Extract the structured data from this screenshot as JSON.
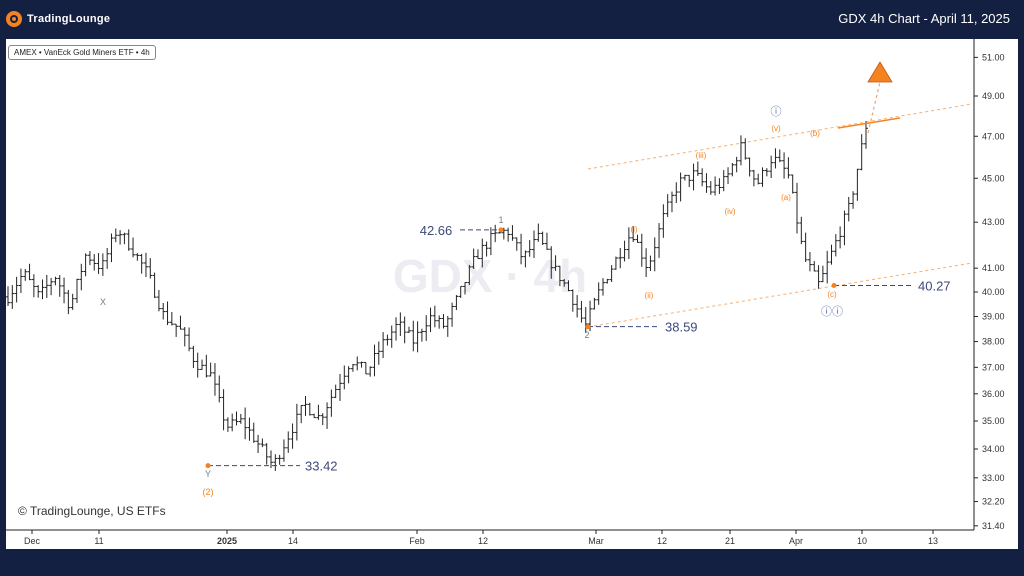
{
  "header": {
    "logo_text": "TradingLounge",
    "chart_title": "GDX 4h Chart - April 11, 2025"
  },
  "symbol_label": "AMEX • VanEck Gold Miners ETF • 4h",
  "watermark": "GDX · 4h",
  "credit": "© TradingLounge, US ETFs",
  "colors": {
    "background_frame": "#132042",
    "accent_orange": "#f58220",
    "bar_color": "#222222",
    "level_line": "#3d4a7a",
    "wave_label_gray": "#7a7a7a",
    "wave_label_blue": "#5a6fa8"
  },
  "chart_data": {
    "type": "ohlc",
    "y_scale": "log",
    "ylim": [
      31.0,
      52.0
    ],
    "x_tick_labels": [
      "Dec",
      "11",
      "2025",
      "14",
      "Feb",
      "12",
      "Mar",
      "12",
      "21",
      "Apr",
      "10",
      "13"
    ],
    "y_tick_labels": [
      "31.40",
      "32.20",
      "33.00",
      "34.00",
      "35.00",
      "36.00",
      "37.00",
      "38.00",
      "39.00",
      "40.00",
      "41.00",
      "43.00",
      "45.00",
      "47.00",
      "49.00",
      "51.00"
    ],
    "price_levels": [
      {
        "label": "42.66",
        "value": 42.66
      },
      {
        "label": "38.59",
        "value": 38.59
      },
      {
        "label": "33.42",
        "value": 33.42
      },
      {
        "label": "40.27",
        "value": 40.27
      }
    ],
    "wave_labels": [
      "X",
      "Y",
      "(2)",
      "1",
      "2",
      "(i)",
      "(ii)",
      "(iii)",
      "(iv)",
      "(v)",
      "(a)",
      "(b)",
      "(c)",
      "ⓘ",
      "ⓘⓘ"
    ],
    "price_path": [
      39.8,
      40.8,
      39.8,
      40.7,
      39.4,
      41.6,
      41.0,
      42.7,
      41.8,
      40.7,
      39.0,
      38.5,
      37.2,
      36.7,
      34.8,
      35.0,
      34.2,
      33.42,
      34.5,
      35.6,
      35.1,
      36.2,
      37.3,
      36.8,
      37.9,
      38.7,
      38.0,
      39.0,
      38.6,
      40.0,
      41.5,
      42.3,
      42.66,
      41.4,
      42.3,
      41.0,
      40.0,
      38.59,
      40.2,
      41.4,
      42.6,
      41.0,
      43.2,
      44.8,
      45.2,
      44.4,
      44.9,
      46.5,
      44.7,
      46.0,
      45.2,
      41.5,
      40.27,
      42.0,
      43.8,
      47.5
    ]
  }
}
